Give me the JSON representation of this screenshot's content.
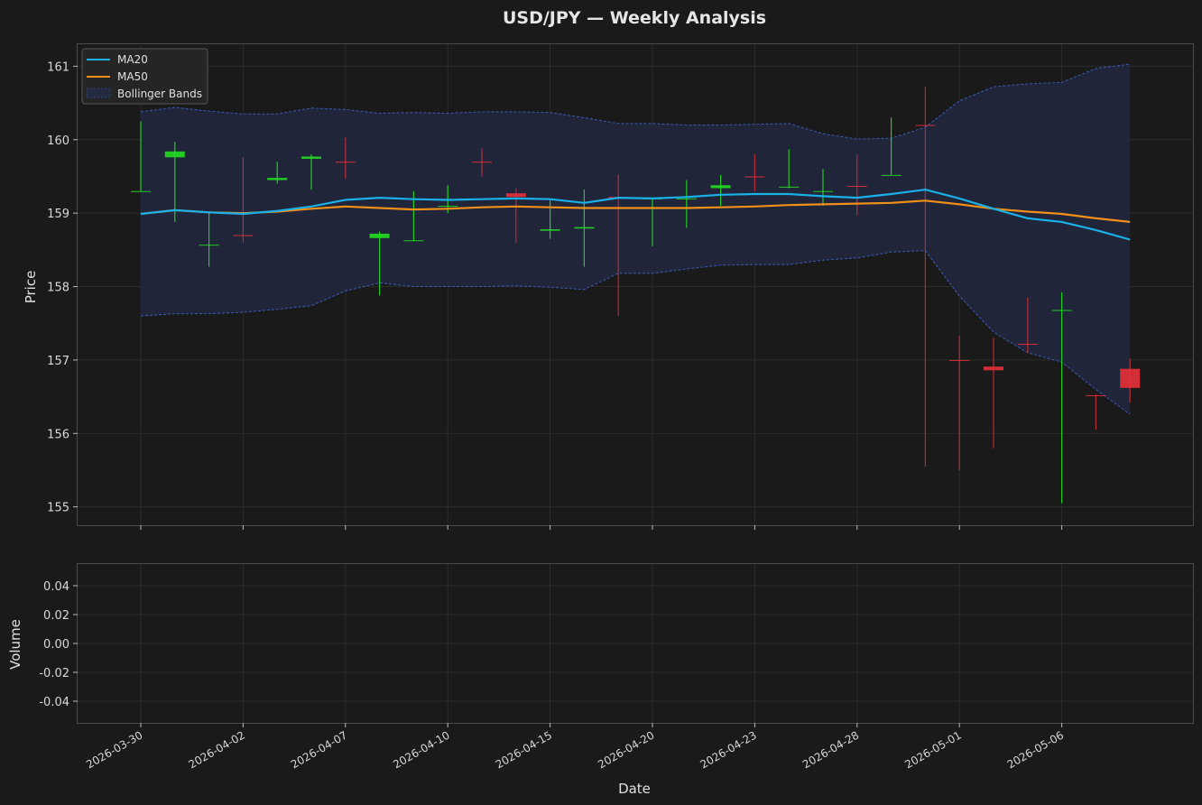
{
  "chart_data": {
    "type": "candlestick",
    "title": "USD/JPY — Weekly Analysis",
    "xlabel": "Date",
    "ylabel_price": "Price",
    "ylabel_volume": "Volume",
    "price_ylim": [
      154.75,
      161.3
    ],
    "price_yticks": [
      "155",
      "156",
      "157",
      "158",
      "159",
      "160",
      "161"
    ],
    "volume_ylim": [
      -0.055,
      0.055
    ],
    "volume_yticks": [
      "0.04",
      "0.02",
      "0.00",
      "-0.02",
      "-0.04"
    ],
    "x_tick_labels": [
      "2026-03-30",
      "2026-04-02",
      "2026-04-07",
      "2026-04-10",
      "2026-04-15",
      "2026-04-20",
      "2026-04-23",
      "2026-04-28",
      "2026-05-01",
      "2026-05-06"
    ],
    "x_tick_index": [
      0,
      3,
      6,
      9,
      12,
      15,
      18,
      21,
      24,
      27
    ],
    "legend": {
      "position": "top-left",
      "entries": [
        "MA20",
        "MA50",
        "Bollinger Bands"
      ]
    },
    "colors": {
      "up": "#22dd22",
      "down": "#e8303a",
      "ma20": "#1ab0e8",
      "ma50": "#f0901a",
      "band": "#3a5cb8",
      "grid": "#2c2c2c"
    },
    "candles": [
      {
        "o": 159.3,
        "h": 160.25,
        "l": 159.3,
        "c": 159.3
      },
      {
        "o": 159.76,
        "h": 159.97,
        "l": 158.88,
        "c": 159.84
      },
      {
        "o": 158.57,
        "h": 159.02,
        "l": 158.27,
        "c": 158.57
      },
      {
        "o": 158.7,
        "h": 159.76,
        "l": 158.6,
        "c": 158.69
      },
      {
        "o": 159.45,
        "h": 159.7,
        "l": 159.4,
        "c": 159.48
      },
      {
        "o": 159.74,
        "h": 159.8,
        "l": 159.32,
        "c": 159.77
      },
      {
        "o": 159.7,
        "h": 160.03,
        "l": 159.47,
        "c": 159.69
      },
      {
        "o": 158.66,
        "h": 158.75,
        "l": 157.88,
        "c": 158.72
      },
      {
        "o": 158.63,
        "h": 159.3,
        "l": 158.62,
        "c": 158.63
      },
      {
        "o": 159.1,
        "h": 159.38,
        "l": 159.0,
        "c": 159.1
      },
      {
        "o": 159.7,
        "h": 159.88,
        "l": 159.5,
        "c": 159.69
      },
      {
        "o": 159.27,
        "h": 159.34,
        "l": 158.6,
        "c": 159.22
      },
      {
        "o": 158.76,
        "h": 159.2,
        "l": 158.65,
        "c": 158.78
      },
      {
        "o": 158.79,
        "h": 159.32,
        "l": 158.27,
        "c": 158.81
      },
      {
        "o": 159.22,
        "h": 159.53,
        "l": 157.6,
        "c": 159.2
      },
      {
        "o": 159.2,
        "h": 159.2,
        "l": 158.55,
        "c": 159.2
      },
      {
        "o": 159.2,
        "h": 159.45,
        "l": 158.8,
        "c": 159.2
      },
      {
        "o": 159.34,
        "h": 159.52,
        "l": 159.1,
        "c": 159.38
      },
      {
        "o": 159.5,
        "h": 159.8,
        "l": 159.3,
        "c": 159.49
      },
      {
        "o": 159.36,
        "h": 159.87,
        "l": 159.34,
        "c": 159.36
      },
      {
        "o": 159.3,
        "h": 159.6,
        "l": 159.1,
        "c": 159.3
      },
      {
        "o": 159.37,
        "h": 159.8,
        "l": 158.97,
        "c": 159.36
      },
      {
        "o": 159.52,
        "h": 160.3,
        "l": 159.52,
        "c": 159.52
      },
      {
        "o": 160.2,
        "h": 160.72,
        "l": 155.55,
        "c": 160.19
      },
      {
        "o": 157.0,
        "h": 157.33,
        "l": 155.5,
        "c": 156.99
      },
      {
        "o": 156.91,
        "h": 157.3,
        "l": 155.8,
        "c": 156.86
      },
      {
        "o": 157.22,
        "h": 157.85,
        "l": 157.1,
        "c": 157.21
      },
      {
        "o": 157.67,
        "h": 157.92,
        "l": 155.05,
        "c": 157.68
      },
      {
        "o": 156.52,
        "h": 156.53,
        "l": 156.05,
        "c": 156.51
      },
      {
        "o": 156.88,
        "h": 157.02,
        "l": 156.42,
        "c": 156.62
      }
    ],
    "ma20": [
      158.99,
      159.04,
      159.01,
      158.99,
      159.03,
      159.09,
      159.18,
      159.21,
      159.19,
      159.18,
      159.19,
      159.2,
      159.19,
      159.14,
      159.21,
      159.2,
      159.22,
      159.25,
      159.26,
      159.26,
      159.23,
      159.21,
      159.26,
      159.32,
      159.2,
      159.06,
      158.93,
      158.88,
      158.77,
      158.64
    ],
    "ma50": [
      158.99,
      159.04,
      159.01,
      159.0,
      159.02,
      159.06,
      159.09,
      159.07,
      159.05,
      159.06,
      159.08,
      159.09,
      159.08,
      159.07,
      159.07,
      159.07,
      159.07,
      159.08,
      159.09,
      159.11,
      159.12,
      159.13,
      159.14,
      159.17,
      159.12,
      159.06,
      159.02,
      158.99,
      158.93,
      158.88
    ],
    "bb_upper": [
      160.38,
      160.44,
      160.39,
      160.35,
      160.35,
      160.43,
      160.41,
      160.36,
      160.37,
      160.36,
      160.38,
      160.38,
      160.37,
      160.3,
      160.22,
      160.22,
      160.2,
      160.2,
      160.21,
      160.22,
      160.08,
      160.01,
      160.02,
      160.17,
      160.53,
      160.72,
      160.76,
      160.78,
      160.97,
      161.03
    ],
    "bb_lower": [
      157.6,
      157.63,
      157.63,
      157.65,
      157.69,
      157.74,
      157.94,
      158.05,
      158.0,
      158.0,
      158.0,
      158.01,
      157.99,
      157.96,
      158.18,
      158.18,
      158.24,
      158.29,
      158.3,
      158.3,
      158.36,
      158.39,
      158.47,
      158.49,
      157.87,
      157.38,
      157.1,
      156.97,
      156.6,
      156.26
    ]
  }
}
